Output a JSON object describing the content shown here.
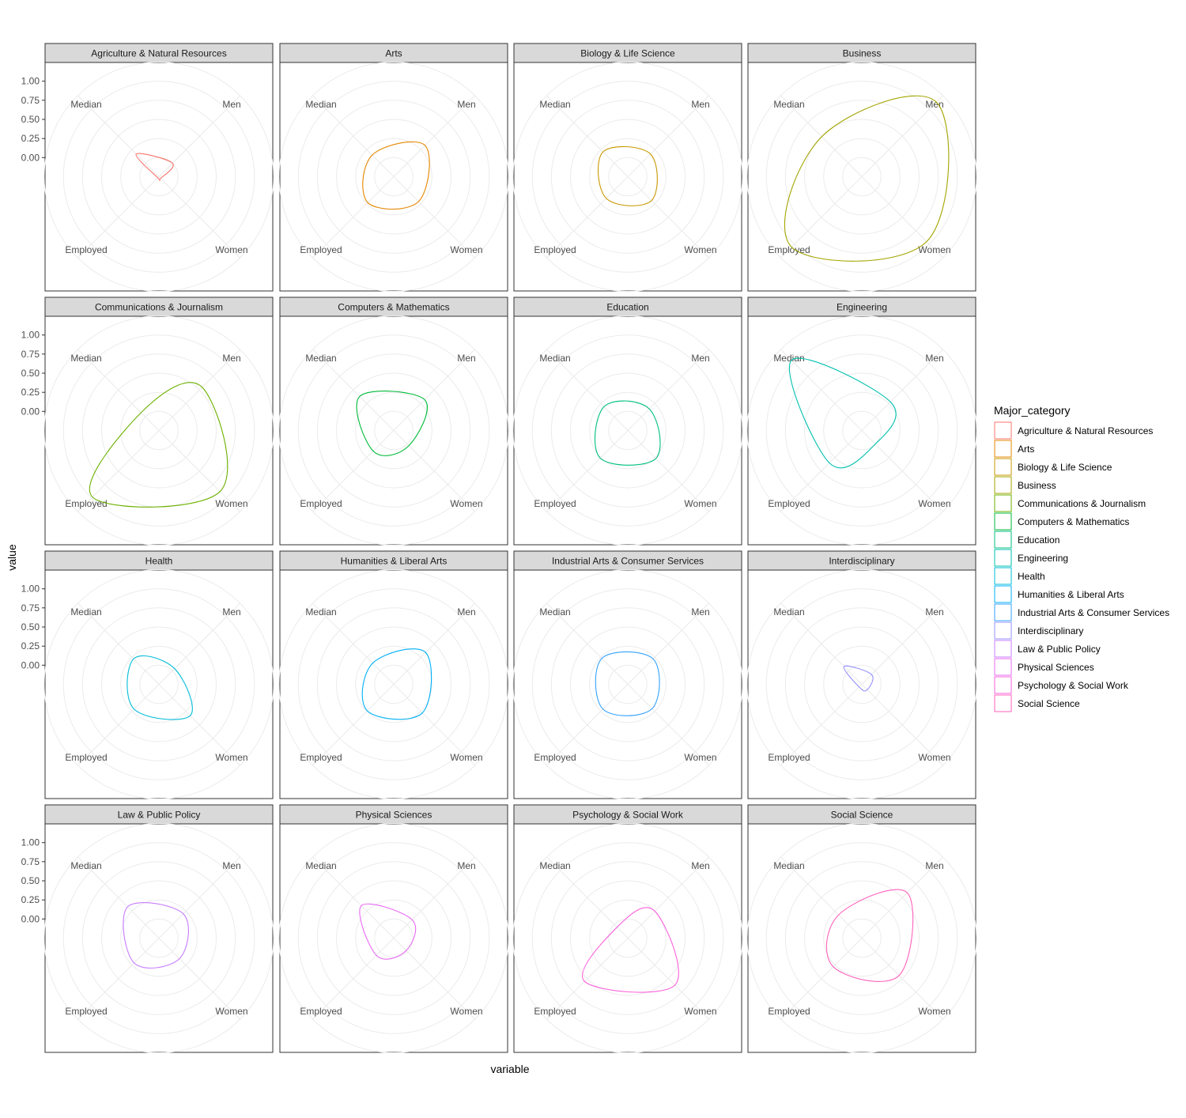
{
  "chart_data": {
    "type": "radar",
    "facet_layout": "4x4",
    "xlabel": "variable",
    "ylabel": "value",
    "axes": [
      "Median",
      "Men",
      "Women",
      "Employed"
    ],
    "yticks": [
      "1.00",
      "0.75",
      "0.50",
      "0.25",
      "0.00"
    ],
    "ylim": [
      -0.25,
      1.25
    ],
    "grid": true,
    "legend": {
      "title": "Major_category",
      "position": "right",
      "entries": [
        "Agriculture & Natural Resources",
        "Arts",
        "Biology & Life Science",
        "Business",
        "Communications & Journalism",
        "Computers & Mathematics",
        "Education",
        "Engineering",
        "Health",
        "Humanities & Liberal Arts",
        "Industrial Arts & Consumer Services",
        "Interdisciplinary",
        "Law & Public Policy",
        "Physical Sciences",
        "Psychology & Social Work",
        "Social Science"
      ]
    },
    "series": [
      {
        "name": "Agriculture & Natural Resources",
        "color": "#F8766D",
        "values": {
          "Median": 0.17,
          "Men": 0.0,
          "Women": -0.22,
          "Employed": -0.23
        }
      },
      {
        "name": "Arts",
        "color": "#E58700",
        "values": {
          "Median": 0.15,
          "Men": 0.33,
          "Women": 0.21,
          "Employed": 0.23
        }
      },
      {
        "name": "Biology & Life Science",
        "color": "#C99800",
        "values": {
          "Median": 0.21,
          "Men": 0.17,
          "Women": 0.19,
          "Employed": 0.15
        }
      },
      {
        "name": "Business",
        "color": "#A3A500",
        "values": {
          "Median": 0.49,
          "Men": 1.13,
          "Women": 0.95,
          "Employed": 1.05
        }
      },
      {
        "name": "Communications & Journalism",
        "color": "#6BB100",
        "values": {
          "Median": 0.08,
          "Men": 0.55,
          "Women": 0.88,
          "Employed": 0.98
        }
      },
      {
        "name": "Computers & Mathematics",
        "color": "#00BA38",
        "values": {
          "Median": 0.38,
          "Men": 0.32,
          "Women": 0.03,
          "Employed": 0.13
        }
      },
      {
        "name": "Education",
        "color": "#00BF7D",
        "values": {
          "Median": 0.19,
          "Men": 0.15,
          "Women": 0.27,
          "Employed": 0.26
        }
      },
      {
        "name": "Engineering",
        "color": "#00C0AF",
        "values": {
          "Median": 1.05,
          "Men": 0.28,
          "Women": 0.0,
          "Employed": 0.35
        }
      },
      {
        "name": "Health",
        "color": "#00BCD8",
        "values": {
          "Median": 0.22,
          "Men": 0.04,
          "Women": 0.33,
          "Employed": 0.21
        }
      },
      {
        "name": "Humanities & Liberal Arts",
        "color": "#00B0F6",
        "values": {
          "Median": 0.14,
          "Men": 0.34,
          "Women": 0.28,
          "Employed": 0.24
        }
      },
      {
        "name": "Industrial Arts & Consumer Services",
        "color": "#35A2FF",
        "values": {
          "Median": 0.23,
          "Men": 0.22,
          "Women": 0.2,
          "Employed": 0.21
        }
      },
      {
        "name": "Interdisciplinary",
        "color": "#9590FF",
        "values": {
          "Median": 0.08,
          "Men": -0.07,
          "Women": -0.15,
          "Employed": -0.2
        }
      },
      {
        "name": "Law & Public Policy",
        "color": "#C77CFF",
        "values": {
          "Median": 0.33,
          "Men": 0.2,
          "Women": 0.13,
          "Employed": 0.21
        }
      },
      {
        "name": "Physical Sciences",
        "color": "#E76BF3",
        "values": {
          "Median": 0.35,
          "Men": 0.09,
          "Women": -0.02,
          "Employed": 0.07
        }
      },
      {
        "name": "Psychology & Social Work",
        "color": "#FA62DB",
        "values": {
          "Median": -0.05,
          "Men": 0.25,
          "Women": 0.62,
          "Employed": 0.55
        }
      },
      {
        "name": "Social Science",
        "color": "#FF62BC",
        "values": {
          "Median": 0.18,
          "Men": 0.59,
          "Women": 0.44,
          "Employed": 0.28
        }
      }
    ]
  }
}
